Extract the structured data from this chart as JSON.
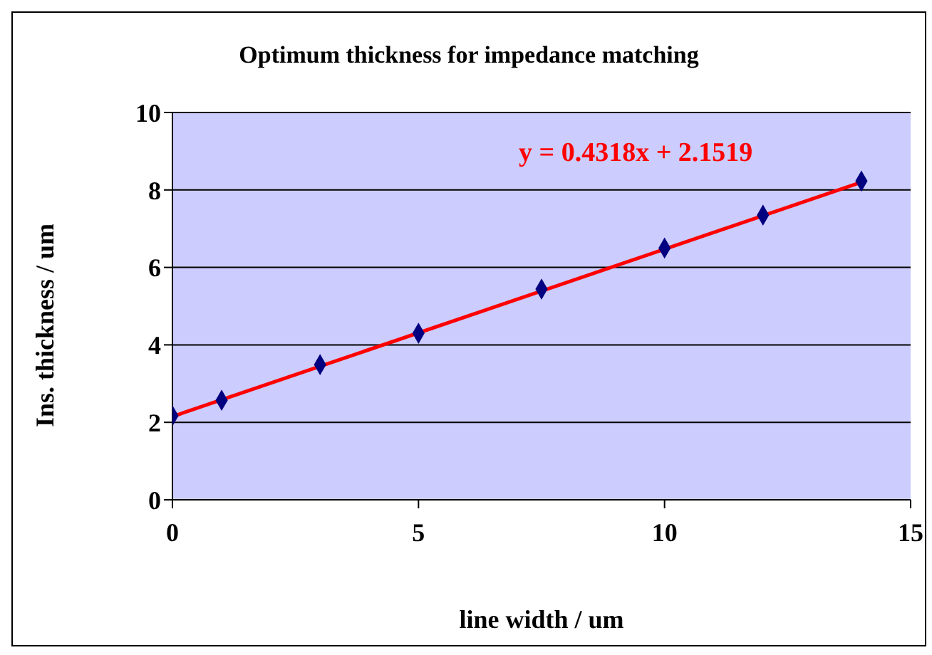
{
  "chart_data": {
    "type": "scatter",
    "title": "Optimum thickness for impedance matching",
    "xlabel": "line width / um",
    "ylabel": "Ins. thickness / um",
    "xlim": [
      0,
      15
    ],
    "xticks": [
      0,
      5,
      10,
      15
    ],
    "ylim": [
      0,
      10
    ],
    "yticks": [
      0,
      2,
      4,
      6,
      8,
      10
    ],
    "grid": "y",
    "annotations": [
      "y = 0.4318x + 2.1519"
    ],
    "series": [
      {
        "marker": "diamond",
        "color": "#000080",
        "x": [
          0,
          1,
          3,
          5,
          7.5,
          10,
          12,
          14
        ],
        "values": [
          2.17,
          2.57,
          3.49,
          4.3,
          5.44,
          6.5,
          7.35,
          8.23
        ]
      },
      {
        "type": "line",
        "marker": "none",
        "color": "#ff0000",
        "x": [
          0,
          14
        ],
        "values": [
          2.15,
          8.2
        ]
      }
    ]
  }
}
